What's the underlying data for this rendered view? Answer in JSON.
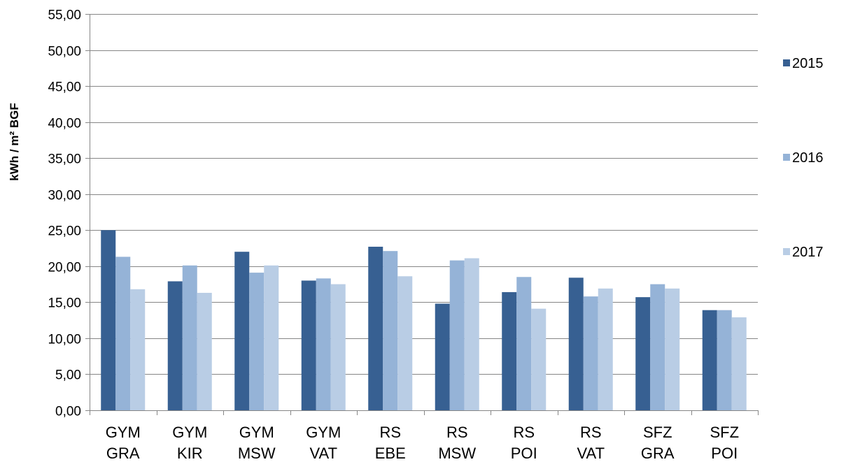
{
  "chart_data": {
    "type": "bar",
    "title": "",
    "xlabel": "",
    "ylabel": "kWh / m² BGF",
    "ylim": [
      0,
      55
    ],
    "ytick_step": 5,
    "ytick_labels": [
      "0,00",
      "5,00",
      "10,00",
      "15,00",
      "20,00",
      "25,00",
      "30,00",
      "35,00",
      "40,00",
      "45,00",
      "50,00",
      "55,00"
    ],
    "grid": true,
    "legend_position": "right",
    "categories": [
      [
        "GYM",
        "GRA"
      ],
      [
        "GYM",
        "KIR"
      ],
      [
        "GYM",
        "MSW"
      ],
      [
        "GYM",
        "VAT"
      ],
      [
        "RS",
        "EBE"
      ],
      [
        "RS",
        "MSW"
      ],
      [
        "RS",
        "POI"
      ],
      [
        "RS",
        "VAT"
      ],
      [
        "SFZ",
        "GRA"
      ],
      [
        "SFZ",
        "POI"
      ]
    ],
    "series": [
      {
        "name": "2015",
        "color": "#376092",
        "values": [
          25.0,
          17.9,
          22.0,
          18.0,
          22.7,
          14.8,
          16.4,
          18.4,
          15.7,
          13.9
        ]
      },
      {
        "name": "2016",
        "color": "#95B3D7",
        "values": [
          21.3,
          20.1,
          19.1,
          18.3,
          22.1,
          20.8,
          18.5,
          15.8,
          17.5,
          13.9
        ]
      },
      {
        "name": "2017",
        "color": "#B9CDE5",
        "values": [
          16.8,
          16.3,
          20.1,
          17.5,
          18.6,
          21.1,
          14.1,
          16.9,
          16.9,
          12.9
        ]
      }
    ]
  }
}
